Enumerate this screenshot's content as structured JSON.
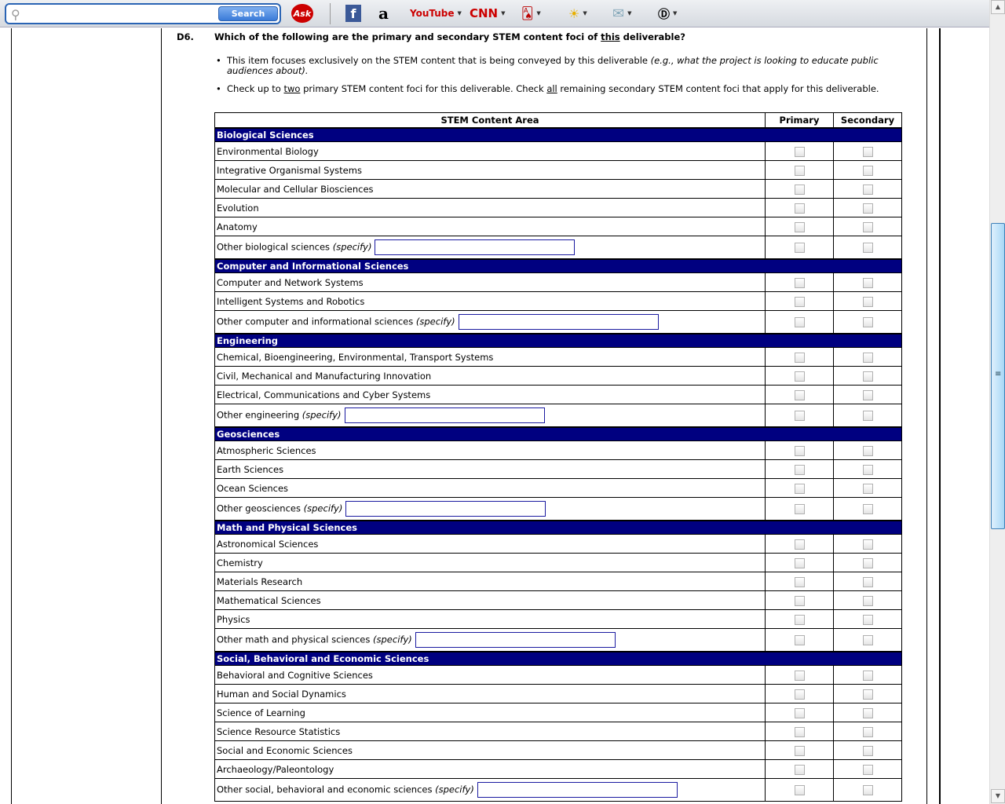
{
  "toolbar": {
    "search_placeholder": "",
    "search_label": "Search",
    "icons": [
      "search-icon",
      "ask-icon",
      "facebook-icon",
      "amazon-icon",
      "youtube-icon",
      "cnn-icon",
      "games-icon",
      "weather-icon",
      "mail-icon",
      "dictionary-icon"
    ],
    "ask": "Ask",
    "youtube": "YouTube",
    "cnn": "CNN",
    "amazon": "a",
    "facebook": "f"
  },
  "question": {
    "number": "D6.",
    "text_before": "Which of the following are the primary and secondary STEM content foci of ",
    "text_underlined": "this",
    "text_after": " deliverable?",
    "bullet1": "This item focuses exclusively on the STEM content that is being conveyed by this deliverable ",
    "bullet1_italic": "(e.g., what the project is looking to educate public audiences about).",
    "bullet2_a": "Check up to ",
    "bullet2_u1": "two",
    "bullet2_b": " primary STEM content foci for this deliverable. Check ",
    "bullet2_u2": "all",
    "bullet2_c": " remaining secondary STEM content foci that apply for this deliverable."
  },
  "table": {
    "headers": [
      "STEM Content Area",
      "Primary",
      "Secondary"
    ],
    "specify": "(specify)",
    "categories": [
      {
        "name": "Biological Sciences",
        "items": [
          "Environmental Biology",
          "Integrative Organismal Systems",
          "Molecular and Cellular Biosciences",
          "Evolution",
          "Anatomy"
        ],
        "other": "Other biological sciences"
      },
      {
        "name": "Computer and Informational Sciences",
        "items": [
          "Computer and Network Systems",
          "Intelligent Systems and Robotics"
        ],
        "other": "Other computer and informational sciences"
      },
      {
        "name": "Engineering",
        "items": [
          "Chemical, Bioengineering, Environmental, Transport Systems",
          "Civil, Mechanical and Manufacturing Innovation",
          "Electrical, Communications and Cyber Systems"
        ],
        "other": "Other engineering"
      },
      {
        "name": "Geosciences",
        "items": [
          "Atmospheric Sciences",
          "Earth Sciences",
          "Ocean Sciences"
        ],
        "other": "Other geosciences"
      },
      {
        "name": "Math and Physical Sciences",
        "items": [
          "Astronomical Sciences",
          "Chemistry",
          "Materials Research",
          "Mathematical Sciences",
          "Physics"
        ],
        "other": "Other math and physical sciences"
      },
      {
        "name": "Social, Behavioral and Economic Sciences",
        "items": [
          "Behavioral and Cognitive Sciences",
          "Human and Social Dynamics",
          "Science of Learning",
          "Science Resource Statistics",
          "Social and Economic Sciences",
          "Archaeology/Paleontology"
        ],
        "other": "Other social, behavioral and economic sciences"
      }
    ]
  }
}
